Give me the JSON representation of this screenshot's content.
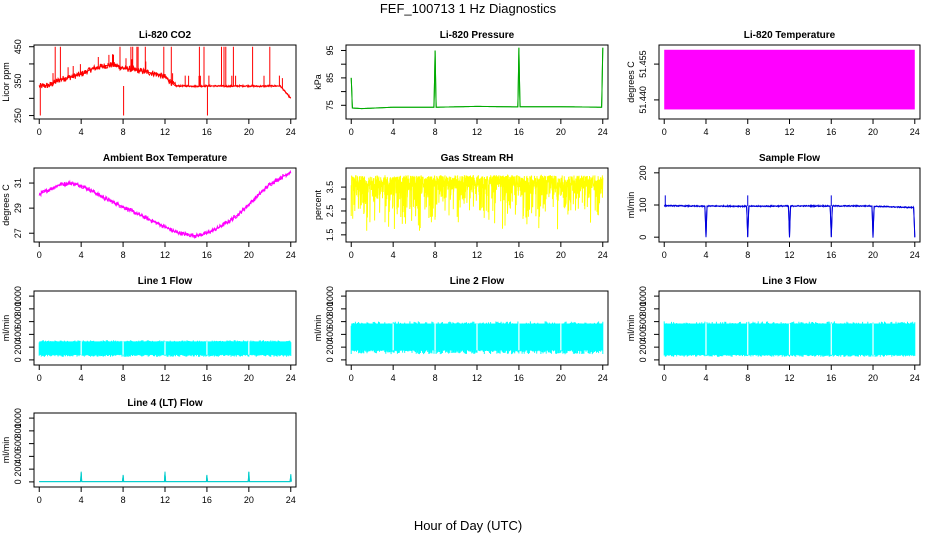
{
  "title": "FEF_100713  1 Hz Diagnostics",
  "xlabel": "Hour of Day (UTC)",
  "chart_data": [
    {
      "type": "line",
      "title": "Li-820 CO2",
      "ylabel": "Licor ppm",
      "color": "#ff0000",
      "xlim": [
        -0.5,
        24.5
      ],
      "ylim": [
        240,
        455
      ],
      "xticks": [
        0,
        4,
        8,
        12,
        16,
        20,
        24
      ],
      "yticks": [
        250,
        300,
        350,
        400,
        450
      ],
      "ytick_labels": [
        "250",
        "",
        "350",
        "",
        "450"
      ],
      "x": [
        0,
        1,
        2,
        3,
        4,
        5,
        6,
        7,
        8,
        9,
        10,
        11,
        12,
        13,
        14,
        15,
        16,
        17,
        18,
        19,
        20,
        21,
        22,
        23,
        24
      ],
      "y": [
        335,
        338,
        355,
        362,
        370,
        385,
        393,
        398,
        388,
        383,
        378,
        372,
        362,
        336,
        336,
        335,
        336,
        336,
        335,
        336,
        336,
        335,
        336,
        336,
        300
      ]
    },
    {
      "type": "line",
      "title": "Li-820 Pressure",
      "ylabel": "kPa",
      "color": "#00aa00",
      "xlim": [
        -0.5,
        24.5
      ],
      "ylim": [
        70,
        97
      ],
      "xticks": [
        0,
        4,
        8,
        12,
        16,
        20,
        24
      ],
      "yticks": [
        75,
        80,
        85,
        90,
        95
      ],
      "ytick_labels": [
        "75",
        "",
        "85",
        "",
        "95"
      ],
      "x": [
        0,
        0.05,
        0.1,
        1,
        4,
        7.9,
        8,
        8.1,
        12,
        15.9,
        16,
        16.1,
        20,
        23.9,
        24
      ],
      "y": [
        85,
        80,
        74,
        73.8,
        74.3,
        74.3,
        95,
        74.3,
        74.6,
        74.4,
        96,
        74.5,
        74.5,
        74.3,
        96
      ]
    },
    {
      "type": "area",
      "title": "Li-820 Temperature",
      "ylabel": "degrees C",
      "color": "#ff00ff",
      "xlim": [
        -0.5,
        24.5
      ],
      "ylim": [
        51.432,
        51.463
      ],
      "xticks": [
        0,
        4,
        8,
        12,
        16,
        20,
        24
      ],
      "yticks": [
        51.44,
        51.455
      ],
      "ytick_labels": [
        "51.440",
        "51.455"
      ],
      "x": [
        0,
        24
      ],
      "ymin": [
        51.436,
        51.436
      ],
      "ymax": [
        51.461,
        51.461
      ]
    },
    {
      "type": "line",
      "title": "Ambient Box Temperature",
      "ylabel": "degrees C",
      "color": "#ff00ff",
      "xlim": [
        -0.5,
        24.5
      ],
      "ylim": [
        26.3,
        32.2
      ],
      "xticks": [
        0,
        4,
        8,
        12,
        16,
        20,
        24
      ],
      "yticks": [
        27,
        29,
        31
      ],
      "ytick_labels": [
        "27",
        "29",
        "31"
      ],
      "x": [
        0,
        1,
        2,
        3,
        4,
        5,
        6,
        7,
        8,
        9,
        10,
        11,
        12,
        13,
        14,
        15,
        16,
        17,
        18,
        19,
        20,
        21,
        22,
        23,
        24
      ],
      "y": [
        30.1,
        30.5,
        30.9,
        31.0,
        30.8,
        30.4,
        29.9,
        29.5,
        29.1,
        28.7,
        28.3,
        27.9,
        27.5,
        27.1,
        26.9,
        26.8,
        27.0,
        27.4,
        27.9,
        28.5,
        29.3,
        30.1,
        30.9,
        31.4,
        31.9
      ]
    },
    {
      "type": "line",
      "title": "Gas Stream RH",
      "ylabel": "percent",
      "color": "#ffff00",
      "xlim": [
        -0.5,
        24.5
      ],
      "ylim": [
        1.2,
        4.3
      ],
      "xticks": [
        0,
        4,
        8,
        12,
        16,
        20,
        24
      ],
      "yticks": [
        1.5,
        2.0,
        2.5,
        3.0,
        3.5
      ],
      "ytick_labels": [
        "1.5",
        "",
        "2.5",
        "",
        "3.5"
      ],
      "x": [
        0,
        24
      ],
      "ymin": [
        1.4,
        1.4
      ],
      "ymax": [
        4.0,
        4.0
      ]
    },
    {
      "type": "line",
      "title": "Sample Flow",
      "ylabel": "ml/min",
      "color": "#0000dd",
      "xlim": [
        -0.5,
        24.5
      ],
      "ylim": [
        -15,
        215
      ],
      "xticks": [
        0,
        4,
        8,
        12,
        16,
        20,
        24
      ],
      "yticks": [
        0,
        100,
        200
      ],
      "ytick_labels": [
        "0",
        "100",
        "200"
      ],
      "x": [
        0,
        3.9,
        4,
        4.1,
        7.9,
        8,
        8.1,
        11.9,
        12,
        12.1,
        15.9,
        16,
        16.1,
        19.9,
        20,
        20.1,
        23.9,
        24
      ],
      "y": [
        98,
        96,
        0,
        97,
        96,
        0,
        96,
        97,
        0,
        97,
        97,
        0,
        97,
        97,
        0,
        96,
        92,
        0
      ]
    },
    {
      "type": "area",
      "title": "Line 1 Flow",
      "ylabel": "ml/min",
      "color": "#00ffff",
      "xlim": [
        -0.5,
        24.5
      ],
      "ylim": [
        -80,
        1080
      ],
      "xticks": [
        0,
        4,
        8,
        12,
        16,
        20,
        24
      ],
      "yticks": [
        0,
        200,
        400,
        600,
        800,
        1000
      ],
      "ytick_labels": [
        "0",
        "200",
        "400",
        "600",
        "800",
        "1000"
      ],
      "x": [
        0,
        24
      ],
      "ymin": [
        80,
        80
      ],
      "ymax": [
        290,
        290
      ]
    },
    {
      "type": "area",
      "title": "Line 2 Flow",
      "ylabel": "ml/min",
      "color": "#00ffff",
      "xlim": [
        -0.5,
        24.5
      ],
      "ylim": [
        -80,
        1080
      ],
      "xticks": [
        0,
        4,
        8,
        12,
        16,
        20,
        24
      ],
      "yticks": [
        0,
        200,
        400,
        600,
        800,
        1000
      ],
      "ytick_labels": [
        "0",
        "200",
        "400",
        "600",
        "800",
        "1000"
      ],
      "x": [
        0,
        24
      ],
      "ymin": [
        150,
        150
      ],
      "ymax": [
        570,
        570
      ]
    },
    {
      "type": "area",
      "title": "Line 3 Flow",
      "ylabel": "ml/min",
      "color": "#00ffff",
      "xlim": [
        -0.5,
        24.5
      ],
      "ylim": [
        -80,
        1080
      ],
      "xticks": [
        0,
        4,
        8,
        12,
        16,
        20,
        24
      ],
      "yticks": [
        0,
        200,
        400,
        600,
        800,
        1000
      ],
      "ytick_labels": [
        "0",
        "200",
        "400",
        "600",
        "800",
        "1000"
      ],
      "x": [
        0,
        24
      ],
      "ymin": [
        80,
        80
      ],
      "ymax": [
        570,
        570
      ]
    },
    {
      "type": "line",
      "title": "Line 4 (LT) Flow",
      "ylabel": "ml/min",
      "color": "#00cccc",
      "xlim": [
        -0.5,
        24.5
      ],
      "ylim": [
        -80,
        1080
      ],
      "xticks": [
        0,
        4,
        8,
        12,
        16,
        20,
        24
      ],
      "yticks": [
        0,
        200,
        400,
        600,
        800,
        1000
      ],
      "ytick_labels": [
        "0",
        "200",
        "400",
        "600",
        "800",
        "1000"
      ],
      "x": [
        0,
        3.95,
        4,
        4.05,
        7.95,
        8,
        8.05,
        11.95,
        12,
        12.05,
        15.95,
        16,
        16.05,
        19.95,
        20,
        20.05,
        23.95,
        24,
        24.05
      ],
      "y": [
        5,
        5,
        160,
        5,
        5,
        110,
        5,
        5,
        160,
        5,
        5,
        110,
        5,
        5,
        160,
        5,
        5,
        120,
        5
      ]
    }
  ]
}
